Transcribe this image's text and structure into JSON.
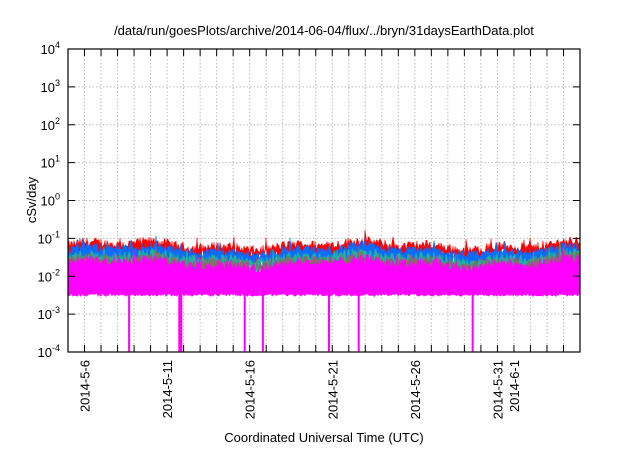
{
  "chart_data": {
    "type": "area",
    "title": "/data/run/goesPlots/archive/2014-06-04/flux/../bryn/31daysEarthData.plot",
    "xlabel": "Coordinated Universal Time (UTC)",
    "ylabel": "cSv/day",
    "yscale": "log",
    "ylim": [
      0.0001,
      10000
    ],
    "xlim": [
      "2014-5-5",
      "2014-6-5"
    ],
    "grid": true,
    "legend": "none",
    "y_ticks": [
      {
        "base": "10",
        "exp": "-4",
        "value": 0.0001
      },
      {
        "base": "10",
        "exp": "-3",
        "value": 0.001
      },
      {
        "base": "10",
        "exp": "-2",
        "value": 0.01
      },
      {
        "base": "10",
        "exp": "-1",
        "value": 0.1
      },
      {
        "base": "10",
        "exp": "0",
        "value": 1
      },
      {
        "base": "10",
        "exp": "1",
        "value": 10
      },
      {
        "base": "10",
        "exp": "2",
        "value": 100
      },
      {
        "base": "10",
        "exp": "3",
        "value": 1000
      },
      {
        "base": "10",
        "exp": "4",
        "value": 10000
      }
    ],
    "x_tick_labels": [
      {
        "label": "2014-5-6",
        "day": 1
      },
      {
        "label": "2014-5-11",
        "day": 6
      },
      {
        "label": "2014-5-16",
        "day": 11
      },
      {
        "label": "2014-5-21",
        "day": 16
      },
      {
        "label": "2014-5-26",
        "day": 21
      },
      {
        "label": "2014-5-31",
        "day": 26
      },
      {
        "label": "2014-6-1",
        "day": 27
      }
    ],
    "x_days_span": 31,
    "series": [
      {
        "name": "red",
        "color": "#ff0000",
        "typical_high": 0.065,
        "typical_low": 0.03
      },
      {
        "name": "blue",
        "color": "#0a6cff",
        "typical_high": 0.048,
        "typical_low": 0.02
      },
      {
        "name": "teal",
        "color": "#20b39a",
        "typical_high": 0.032,
        "typical_low": 0.015
      },
      {
        "name": "gray",
        "color": "#8a6a6a",
        "typical_high": 0.026,
        "typical_low": 0.012
      },
      {
        "name": "magenta",
        "color": "#ff00ff",
        "typical_high": 0.022,
        "typical_low": 0.0035
      }
    ],
    "dropouts_days": [
      3.7,
      6.8,
      10.7,
      11.8,
      15.8,
      17.6,
      24.5
    ]
  }
}
